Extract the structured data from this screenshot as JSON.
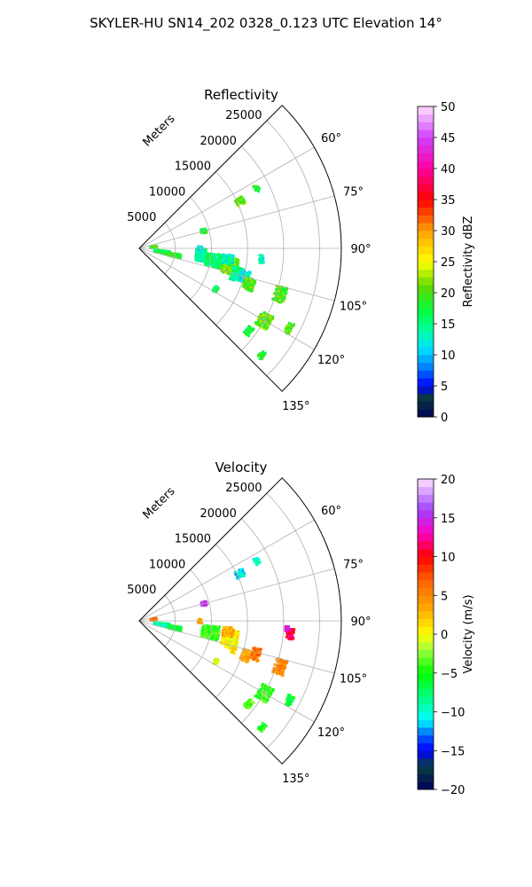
{
  "figure": {
    "suptitle": "SKYLER-HU  SN14_202  0328_0.123 UTC Elevation 14°"
  },
  "chart_data": [
    {
      "type": "polar_sector",
      "title": "Reflectivity",
      "radial_label": "Meters",
      "r_range": [
        0,
        28000
      ],
      "r_ticks": [
        5000,
        10000,
        15000,
        20000,
        25000
      ],
      "r_tick_labels": [
        "5000",
        "10000",
        "15000",
        "20000",
        "25000"
      ],
      "theta_range_deg": [
        45,
        135
      ],
      "theta_ticks": [
        60,
        75,
        90,
        105,
        120,
        135
      ],
      "theta_tick_labels": [
        "60°",
        "75°",
        "90°",
        "105°",
        "120°",
        "135°"
      ],
      "grid": true,
      "colorbar": {
        "label": "Reflectivity dBZ",
        "range": [
          0,
          50
        ],
        "ticks": [
          0,
          5,
          10,
          15,
          20,
          25,
          30,
          35,
          40,
          45,
          50
        ],
        "tick_labels": [
          "0",
          "5",
          "10",
          "15",
          "20",
          "25",
          "30",
          "35",
          "40",
          "45",
          "50"
        ]
      },
      "echoes": [
        {
          "az": 84,
          "r": 2000,
          "dr": 900,
          "daz": 4,
          "value": 20
        },
        {
          "az": 99,
          "r": 3200,
          "dr": 2200,
          "daz": 4,
          "value": 17
        },
        {
          "az": 101,
          "r": 5000,
          "dr": 1800,
          "daz": 3,
          "value": 19
        },
        {
          "az": 96,
          "r": 8600,
          "dr": 1400,
          "daz": 6,
          "value": 14
        },
        {
          "az": 99,
          "r": 10500,
          "dr": 2400,
          "daz": 5,
          "value": 16
        },
        {
          "az": 101,
          "r": 12800,
          "dr": 2200,
          "daz": 5,
          "value": 21
        },
        {
          "az": 97,
          "r": 12400,
          "dr": 1500,
          "daz": 3,
          "value": 13
        },
        {
          "az": 104,
          "r": 14000,
          "dr": 1500,
          "daz": 3,
          "value": 15
        },
        {
          "az": 90,
          "r": 8400,
          "dr": 600,
          "daz": 2,
          "value": 11
        },
        {
          "az": 105,
          "r": 15000,
          "dr": 1600,
          "daz": 3,
          "value": 12
        },
        {
          "az": 107,
          "r": 13600,
          "dr": 700,
          "daz": 2,
          "value": 14
        },
        {
          "az": 108,
          "r": 16000,
          "dr": 1600,
          "daz": 3,
          "value": 20
        },
        {
          "az": 108,
          "r": 20500,
          "dr": 1600,
          "daz": 3,
          "value": 20
        },
        {
          "az": 118,
          "r": 12000,
          "dr": 600,
          "daz": 2,
          "value": 16
        },
        {
          "az": 120,
          "r": 20000,
          "dr": 1800,
          "daz": 3,
          "value": 21
        },
        {
          "az": 118,
          "r": 23500,
          "dr": 900,
          "daz": 2,
          "value": 20
        },
        {
          "az": 127,
          "r": 19000,
          "dr": 900,
          "daz": 2,
          "value": 17
        },
        {
          "az": 131,
          "r": 22500,
          "dr": 800,
          "daz": 1.5,
          "value": 19
        },
        {
          "az": 75,
          "r": 9300,
          "dr": 900,
          "daz": 2,
          "value": 18
        },
        {
          "az": 65,
          "r": 15400,
          "dr": 1200,
          "daz": 2,
          "value": 21
        },
        {
          "az": 63,
          "r": 18300,
          "dr": 700,
          "daz": 1.5,
          "value": 19
        },
        {
          "az": 95,
          "r": 17000,
          "dr": 700,
          "daz": 2,
          "value": 13
        }
      ]
    },
    {
      "type": "polar_sector",
      "title": "Velocity",
      "radial_label": "Meters",
      "r_range": [
        0,
        28000
      ],
      "r_ticks": [
        5000,
        10000,
        15000,
        20000,
        25000
      ],
      "r_tick_labels": [
        "5000",
        "10000",
        "15000",
        "20000",
        "25000"
      ],
      "theta_range_deg": [
        45,
        135
      ],
      "theta_ticks": [
        60,
        75,
        90,
        105,
        120,
        135
      ],
      "theta_tick_labels": [
        "60°",
        "75°",
        "90°",
        "105°",
        "120°",
        "135°"
      ],
      "grid": true,
      "colorbar": {
        "label": "Velocity (m/s)",
        "range": [
          -20,
          20
        ],
        "ticks": [
          -20,
          -15,
          -10,
          -5,
          0,
          5,
          10,
          15,
          20
        ],
        "tick_labels": [
          "−20",
          "−15",
          "−10",
          "−5",
          "0",
          "5",
          "10",
          "15",
          "20"
        ]
      },
      "echoes": [
        {
          "az": 84,
          "r": 2000,
          "dr": 900,
          "daz": 4,
          "value": 6
        },
        {
          "az": 99,
          "r": 3200,
          "dr": 2200,
          "daz": 4,
          "value": -9
        },
        {
          "az": 101,
          "r": 5000,
          "dr": 1800,
          "daz": 3,
          "value": -6
        },
        {
          "az": 99,
          "r": 10000,
          "dr": 2400,
          "daz": 5,
          "value": -4
        },
        {
          "az": 101,
          "r": 12800,
          "dr": 2200,
          "daz": 5,
          "value": 1
        },
        {
          "az": 97,
          "r": 12400,
          "dr": 1500,
          "daz": 3,
          "value": 3
        },
        {
          "az": 104,
          "r": 13200,
          "dr": 1500,
          "daz": 3,
          "value": 0
        },
        {
          "az": 90,
          "r": 8400,
          "dr": 600,
          "daz": 2,
          "value": 3
        },
        {
          "az": 107,
          "r": 13600,
          "dr": 700,
          "daz": 2,
          "value": 1
        },
        {
          "az": 108,
          "r": 15500,
          "dr": 1200,
          "daz": 3,
          "value": 4
        },
        {
          "az": 106,
          "r": 16800,
          "dr": 1200,
          "daz": 3,
          "value": 6
        },
        {
          "az": 108,
          "r": 20500,
          "dr": 1600,
          "daz": 3,
          "value": 5
        },
        {
          "az": 118,
          "r": 12000,
          "dr": 600,
          "daz": 2,
          "value": 0
        },
        {
          "az": 120,
          "r": 20000,
          "dr": 1800,
          "daz": 3,
          "value": -4
        },
        {
          "az": 118,
          "r": 23500,
          "dr": 900,
          "daz": 2,
          "value": -6
        },
        {
          "az": 127,
          "r": 19000,
          "dr": 900,
          "daz": 2,
          "value": -3
        },
        {
          "az": 131,
          "r": 22500,
          "dr": 800,
          "daz": 1.5,
          "value": -5
        },
        {
          "az": 75,
          "r": 9300,
          "dr": 900,
          "daz": 2,
          "value": 16
        },
        {
          "az": 65,
          "r": 15400,
          "dr": 1200,
          "daz": 2,
          "value": -11
        },
        {
          "az": 63,
          "r": 18300,
          "dr": 700,
          "daz": 1.5,
          "value": -10
        },
        {
          "az": 95,
          "r": 21000,
          "dr": 1000,
          "daz": 2,
          "value": 11
        },
        {
          "az": 93,
          "r": 20500,
          "dr": 500,
          "daz": 1,
          "value": 14
        }
      ]
    }
  ]
}
